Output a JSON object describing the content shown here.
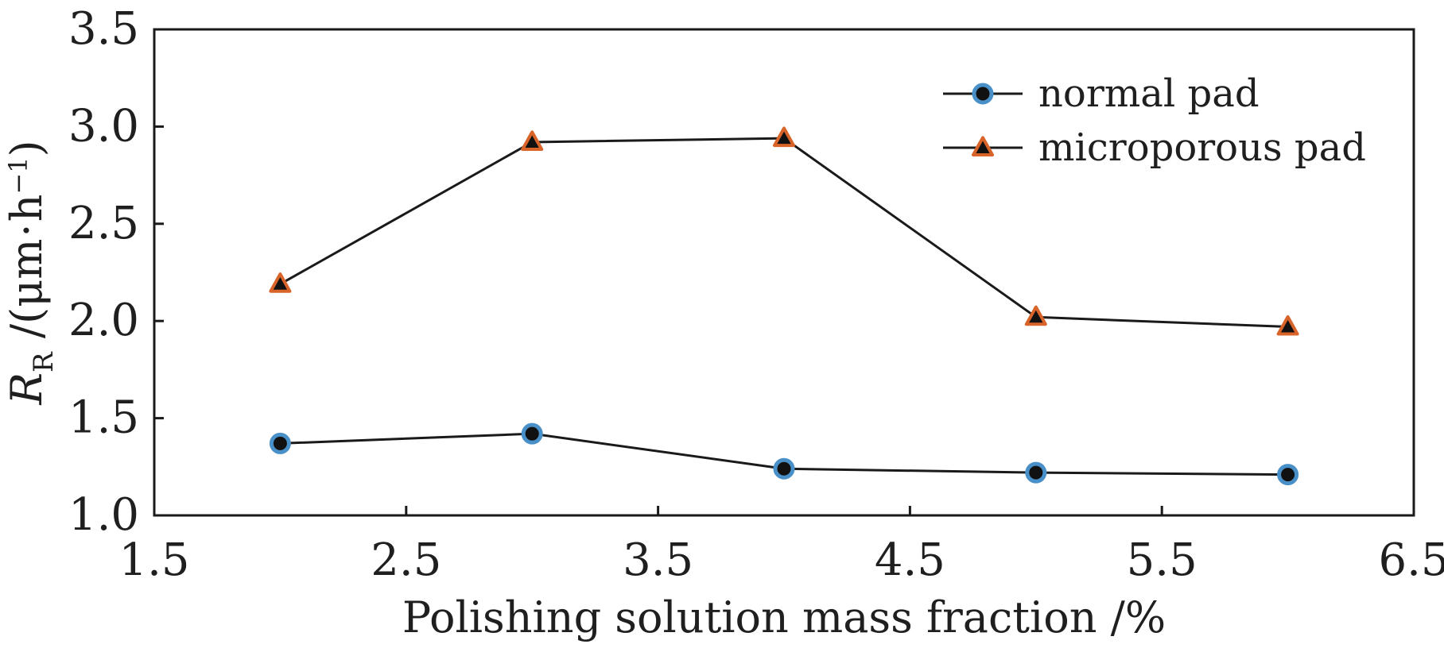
{
  "chart_data": {
    "type": "line",
    "xlabel": "Polishing solution mass fraction /%",
    "ylabel": {
      "main": "R",
      "subscript": "R",
      "units_prefix": " /(μm",
      "units_dot": "·",
      "units_h": "h",
      "units_superscript": "−1",
      "units_suffix": ")"
    },
    "xlim": [
      1.5,
      6.5
    ],
    "ylim": [
      1.0,
      3.5
    ],
    "xticks": [
      "1.5",
      "2.5",
      "3.5",
      "4.5",
      "5.5",
      "6.5"
    ],
    "yticks": [
      "1.0",
      "1.5",
      "2.0",
      "2.5",
      "3.0",
      "3.5"
    ],
    "x": [
      2,
      3,
      4,
      5,
      6
    ],
    "grid": false,
    "legend_position": "top-right",
    "series": [
      {
        "name": "normal pad",
        "marker": "circle",
        "values": [
          1.37,
          1.42,
          1.24,
          1.22,
          1.21
        ],
        "marker_edge_color": "#4a90c8",
        "marker_face_color": "#111111",
        "line_color": "#1a1a1a"
      },
      {
        "name": "microporous pad",
        "marker": "triangle",
        "values": [
          2.19,
          2.92,
          2.94,
          2.02,
          1.97
        ],
        "marker_edge_color": "#d9642a",
        "marker_face_color": "#111111",
        "line_color": "#1a1a1a"
      }
    ]
  }
}
